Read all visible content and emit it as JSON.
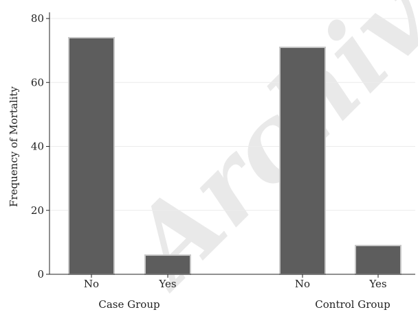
{
  "chart_data": {
    "type": "bar",
    "ylabel": "Frequency of Mortality",
    "xlabel": "",
    "ylim": [
      0,
      85
    ],
    "yticks": [
      0,
      20,
      40,
      60,
      80
    ],
    "grid": true,
    "colors": {
      "bar": "#5d5d5d",
      "bar_outline": "#c8c8c8",
      "grid": "#ececec",
      "axis": "#222222"
    },
    "groups": [
      {
        "name": "Case Group",
        "categories": [
          "No",
          "Yes"
        ],
        "values": [
          74,
          6
        ]
      },
      {
        "name": "Control Group",
        "categories": [
          "No",
          "Yes"
        ],
        "values": [
          71,
          9
        ]
      }
    ]
  },
  "watermark": "Archive"
}
